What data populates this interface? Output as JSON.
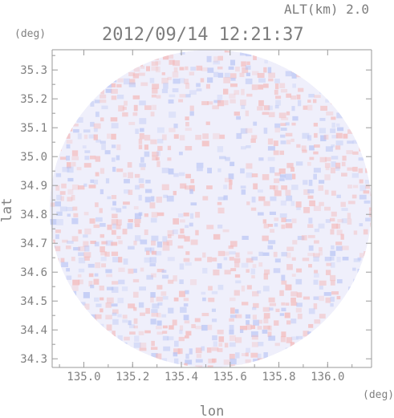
{
  "chart_data": {
    "type": "heatmap",
    "title": "2012/09/14 12:21:37",
    "subtitle": "ALT(km) 2.0",
    "xlabel": "lon",
    "ylabel": "lat",
    "x_unit": "(deg)",
    "y_unit": "(deg)",
    "xlim": [
      134.87,
      136.18
    ],
    "ylim": [
      34.27,
      35.37
    ],
    "x_ticks": [
      135.0,
      135.2,
      135.4,
      135.6,
      135.8,
      136.0
    ],
    "x_tick_labels": [
      "135.0",
      "135.2",
      "135.4",
      "135.6",
      "135.8",
      "136.0"
    ],
    "y_ticks": [
      34.3,
      34.4,
      34.5,
      34.6,
      34.7,
      34.8,
      34.9,
      35.0,
      35.1,
      35.2,
      35.3
    ],
    "y_tick_labels": [
      "34.3",
      "34.4",
      "34.5",
      "34.6",
      "34.7",
      "34.8",
      "34.9",
      "35.0",
      "35.1",
      "35.2",
      "35.3"
    ],
    "radar_center": {
      "lon": 135.52,
      "lat": 34.82
    },
    "radar_radius_deg": {
      "lon": 0.66,
      "lat": 0.55
    },
    "colors": {
      "positive": "#f4b8b8",
      "negative": "#b8c4f4",
      "neutral": "#efeffb",
      "axis": "#9a9a9a"
    },
    "grid": false
  }
}
